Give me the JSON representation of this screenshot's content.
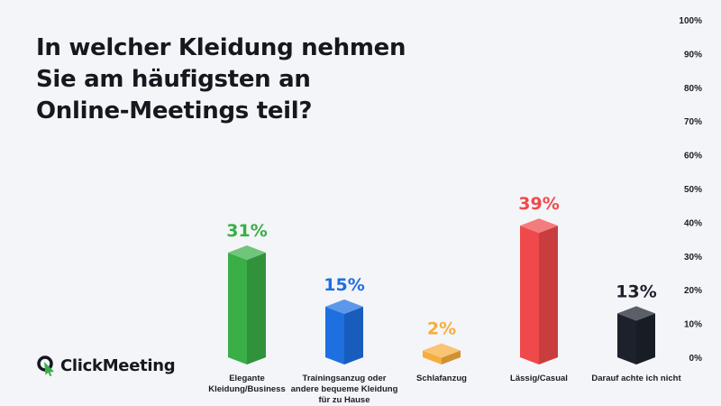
{
  "title": {
    "line1": "In welcher Kleidung nehmen",
    "line2": "Sie am häufigsten an",
    "line3": "Online-Meetings teil?"
  },
  "logo": {
    "text": "ClickMeeting"
  },
  "chart_data": {
    "type": "bar",
    "categories": [
      "Elegante Kleidung/Business",
      "Trainingsanzug oder andere bequeme Kleidung für zu Hause",
      "Schlafanzug",
      "Lässig/Casual",
      "Darauf achte ich nicht"
    ],
    "values": [
      31,
      15,
      2,
      39,
      13
    ],
    "value_labels": [
      "31%",
      "15%",
      "2%",
      "39%",
      "13%"
    ],
    "colors": [
      "#3aae47",
      "#1e6fe0",
      "#f7ad3c",
      "#f0494b",
      "#1d212c"
    ],
    "ylim": [
      0,
      100
    ],
    "yticks": [
      "0%",
      "10%",
      "20%",
      "30%",
      "40%",
      "50%",
      "60%",
      "70%",
      "80%",
      "90%",
      "100%"
    ],
    "axis_position": "right",
    "style": "3d-columns"
  }
}
